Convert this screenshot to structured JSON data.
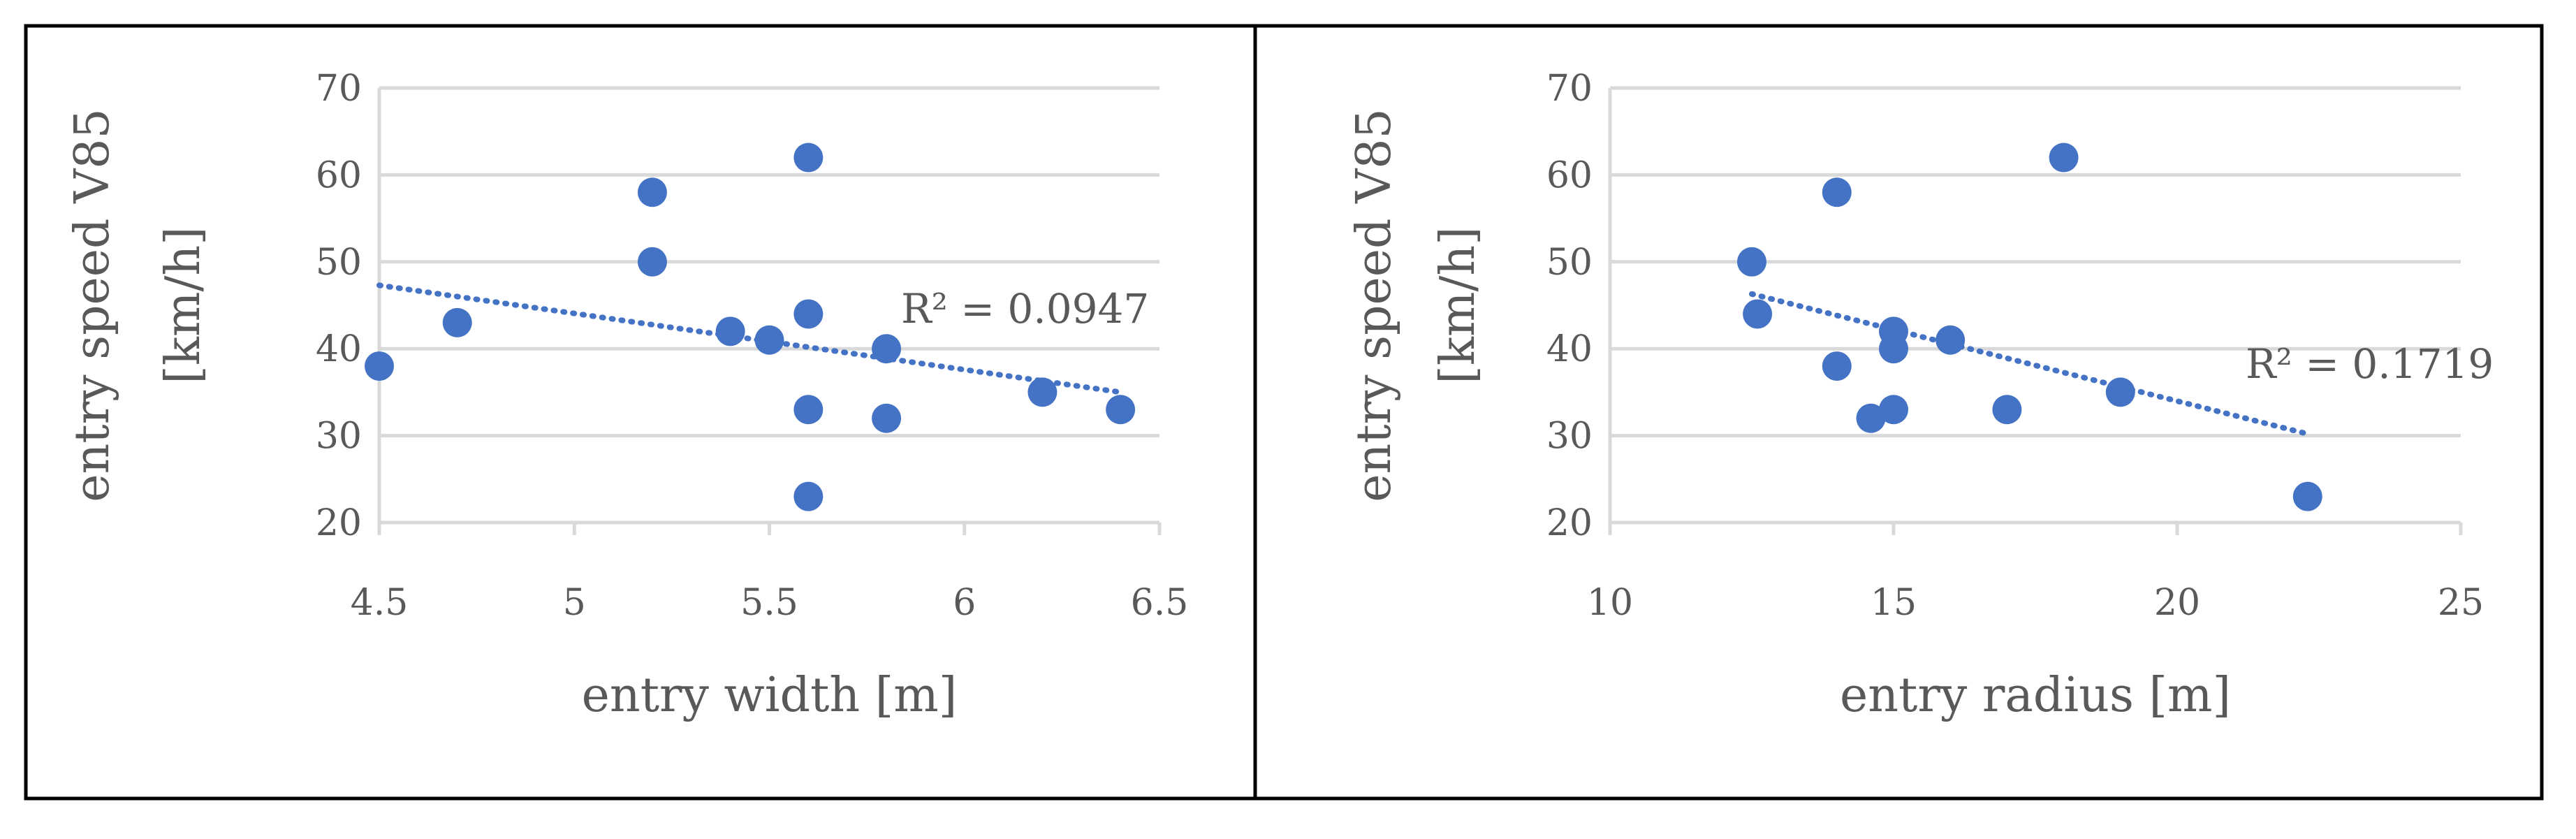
{
  "chart_data": [
    {
      "type": "scatter",
      "xlabel": "entry width [m]",
      "ylabel_lines": [
        "entry speed V85",
        "[km/h]"
      ],
      "xlim": [
        4.5,
        6.5
      ],
      "ylim": [
        20,
        70
      ],
      "xticks": [
        4.5,
        5,
        5.5,
        6,
        6.5
      ],
      "xtick_labels": [
        "4.5",
        "5",
        "5.5",
        "6",
        "6.5"
      ],
      "yticks": [
        20,
        30,
        40,
        50,
        60,
        70
      ],
      "ytick_labels": [
        "20",
        "30",
        "40",
        "50",
        "60",
        "70"
      ],
      "grid": true,
      "points": [
        {
          "x": 4.5,
          "y": 38
        },
        {
          "x": 4.7,
          "y": 43
        },
        {
          "x": 5.2,
          "y": 58
        },
        {
          "x": 5.2,
          "y": 50
        },
        {
          "x": 5.4,
          "y": 42
        },
        {
          "x": 5.5,
          "y": 41
        },
        {
          "x": 5.6,
          "y": 62
        },
        {
          "x": 5.6,
          "y": 44
        },
        {
          "x": 5.6,
          "y": 33
        },
        {
          "x": 5.6,
          "y": 23
        },
        {
          "x": 5.8,
          "y": 40
        },
        {
          "x": 5.8,
          "y": 32
        },
        {
          "x": 6.2,
          "y": 35
        },
        {
          "x": 6.4,
          "y": 33
        }
      ],
      "trendline": {
        "type": "linear",
        "x": [
          4.5,
          6.4
        ],
        "y": [
          47.3,
          35.0
        ]
      },
      "r_squared_label": "R² = 0.0947"
    },
    {
      "type": "scatter",
      "xlabel": "entry radius [m]",
      "ylabel_lines": [
        "entry speed V85",
        "[km/h]"
      ],
      "xlim": [
        10,
        25
      ],
      "ylim": [
        20,
        70
      ],
      "xticks": [
        10,
        15,
        20,
        25
      ],
      "xtick_labels": [
        "10",
        "15",
        "20",
        "25"
      ],
      "yticks": [
        20,
        30,
        40,
        50,
        60,
        70
      ],
      "ytick_labels": [
        "20",
        "30",
        "40",
        "50",
        "60",
        "70"
      ],
      "grid": true,
      "points": [
        {
          "x": 12.5,
          "y": 50
        },
        {
          "x": 12.6,
          "y": 44
        },
        {
          "x": 14,
          "y": 58
        },
        {
          "x": 14,
          "y": 38
        },
        {
          "x": 14.6,
          "y": 32
        },
        {
          "x": 15,
          "y": 42
        },
        {
          "x": 15,
          "y": 40
        },
        {
          "x": 15,
          "y": 33
        },
        {
          "x": 16,
          "y": 41
        },
        {
          "x": 17,
          "y": 33
        },
        {
          "x": 18,
          "y": 62
        },
        {
          "x": 19,
          "y": 35
        },
        {
          "x": 22.3,
          "y": 23
        }
      ],
      "trendline": {
        "type": "linear",
        "x": [
          12.5,
          22.3
        ],
        "y": [
          46.3,
          30.2
        ]
      },
      "r_squared_label": "R² = 0.1719"
    }
  ],
  "colors": {
    "marker": "#4472c4",
    "trendline": "#4472c4",
    "gridline": "#d9d9d9",
    "text": "#595959",
    "border": "#000000"
  }
}
